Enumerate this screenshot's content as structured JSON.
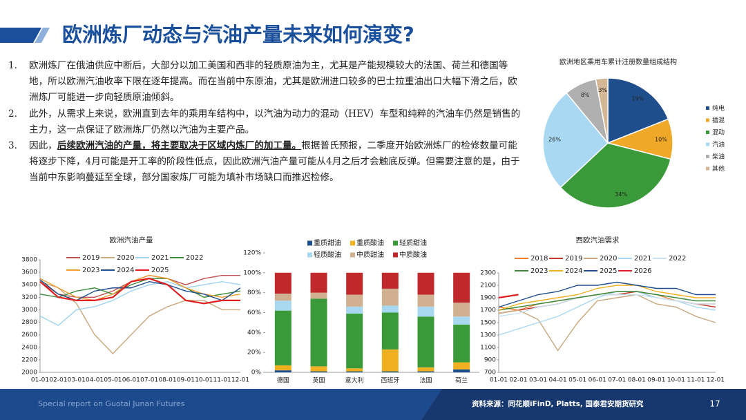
{
  "header": {
    "title": "欧洲炼厂动态与汽油产量未来如何演变?"
  },
  "bullets": [
    {
      "number": "1.",
      "segments": [
        {
          "text": "欧洲炼厂在俄油供应中断后，大部分以加工美国和西非的轻质原油为主，尤其是产能规模较大的法国、荷兰和德国等地，所以欧洲汽油收率下限在逐年提高。而在当前中东原油，尤其是欧洲进口较多的巴士拉重油出口大幅下滑之后，欧洲炼厂可能进一步向轻质原油倾斜。"
        }
      ]
    },
    {
      "number": "2.",
      "segments": [
        {
          "text": "此外，从需求上来说，欧洲直到去年的乘用车结构中，以汽油为动力的混动（HEV）车型和纯粹的汽油车仍然是销售的主力，这一点保证了欧洲炼厂仍然以汽油为主要产品。"
        }
      ]
    },
    {
      "number": "3.",
      "segments": [
        {
          "text": "因此，"
        },
        {
          "text": "后续欧洲汽油的产量，将主要取决于区域内炼厂的加工量。",
          "bold": true
        },
        {
          "text": "根据普氏预报，二季度开始欧洲炼厂的检修数量可能将逐步下降，4月可能是开工率的阶段性低点，因此欧洲汽油产量可能从4月之后才会触底反弹。但需要注意的是，由于当前中东影响蔓延至全球，部分国家炼厂可能为填补市场缺口而推迟检修。"
        }
      ]
    }
  ],
  "chart_data": [
    {
      "type": "pie",
      "title": "欧洲地区乘用车累计注册数量组成结构",
      "categories": [
        "纯电",
        "插混",
        "混动",
        "汽油",
        "柴油",
        "其他"
      ],
      "values": [
        19,
        10,
        34,
        26,
        8,
        3
      ],
      "value_labels": [
        "19%",
        "10%",
        "34%",
        "26%",
        "8%",
        "3%"
      ],
      "colors": [
        "#1f4e8c",
        "#f0a828",
        "#3a9a3a",
        "#a8d8f2",
        "#b0b0b0",
        "#d4b896"
      ]
    },
    {
      "type": "line",
      "title": "欧洲汽油产量",
      "categories": [
        "01-01",
        "02-01",
        "03-01",
        "04-01",
        "05-01",
        "06-01",
        "07-01",
        "08-01",
        "09-01",
        "10-01",
        "11-01",
        "12-01"
      ],
      "ylim": [
        2000,
        3800
      ],
      "yticks": [
        2000,
        2200,
        2400,
        2600,
        2800,
        3000,
        3200,
        3400,
        3600,
        3800
      ],
      "series": [
        {
          "name": "2019",
          "color": "#c0504d",
          "values": [
            3450,
            3250,
            3200,
            3200,
            3300,
            3450,
            3550,
            3500,
            3400,
            3500,
            3550,
            3550
          ]
        },
        {
          "name": "2020",
          "color": "#c9a77c",
          "values": [
            3450,
            3350,
            3100,
            2600,
            2300,
            2600,
            2900,
            3050,
            3150,
            3150,
            3000,
            3000
          ]
        },
        {
          "name": "2021",
          "color": "#9dd3f0",
          "values": [
            2900,
            2750,
            3000,
            3050,
            3150,
            3300,
            3400,
            3450,
            3350,
            3400,
            3450,
            3400
          ]
        },
        {
          "name": "2022",
          "color": "#3c8a3c",
          "values": [
            3250,
            3200,
            3300,
            3350,
            3250,
            3400,
            3500,
            3500,
            3350,
            3200,
            3250,
            3300
          ]
        },
        {
          "name": "2023",
          "color": "#f0a030",
          "values": [
            3500,
            3350,
            3200,
            3150,
            3250,
            3450,
            3550,
            3500,
            3350,
            3250,
            3200,
            3250
          ]
        },
        {
          "name": "2024",
          "color": "#1f4e8c",
          "values": [
            3480,
            3250,
            3150,
            3300,
            3350,
            3350,
            3450,
            3400,
            3300,
            3250,
            3150,
            3350
          ]
        },
        {
          "name": "2025",
          "color": "#e02020",
          "values": [
            3450,
            3200,
            3150,
            3150,
            3200,
            3450,
            3500,
            3400,
            3150,
            3100,
            3150,
            3150
          ]
        }
      ]
    },
    {
      "type": "stacked_bar",
      "categories": [
        "德国",
        "英国",
        "意大利",
        "西班牙",
        "法国",
        "荷兰"
      ],
      "ylim": [
        0,
        120
      ],
      "yticks": [
        {
          "value": 0,
          "label": "0%"
        },
        {
          "value": 20,
          "label": "20%"
        },
        {
          "value": 40,
          "label": "40%"
        },
        {
          "value": 60,
          "label": "60%"
        },
        {
          "value": 80,
          "label": "80%"
        },
        {
          "value": 100,
          "label": "100%"
        },
        {
          "value": 120,
          "label": "120%"
        }
      ],
      "series": [
        {
          "name": "重质甜油",
          "color": "#1f4e8c",
          "values": [
            2,
            1,
            1,
            1,
            1,
            3
          ]
        },
        {
          "name": "重质酸油",
          "color": "#f0b020",
          "values": [
            5,
            5,
            3,
            22,
            4,
            7
          ]
        },
        {
          "name": "轻质甜油",
          "color": "#3a9a3a",
          "values": [
            55,
            68,
            55,
            37,
            51,
            38
          ]
        },
        {
          "name": "轻质酸油",
          "color": "#a8d8f0",
          "values": [
            10,
            0,
            7,
            7,
            10,
            8
          ]
        },
        {
          "name": "中质甜油",
          "color": "#d0b090",
          "values": [
            7,
            6,
            12,
            17,
            12,
            14
          ]
        },
        {
          "name": "中质酸油",
          "color": "#c0282c",
          "values": [
            21,
            20,
            22,
            16,
            22,
            30
          ]
        }
      ]
    },
    {
      "type": "line",
      "title": "西欧汽油需求",
      "categories": [
        "01-01",
        "02-01",
        "03-01",
        "04-01",
        "05-01",
        "06-01",
        "07-01",
        "08-01",
        "09-01",
        "10-01",
        "11-01",
        "12-01"
      ],
      "ylim": [
        700,
        2300
      ],
      "yticks": [
        700,
        900,
        1100,
        1300,
        1500,
        1700,
        1900,
        2100,
        2300
      ],
      "series": [
        {
          "name": "2018",
          "color": "#f08030",
          "values": [
            1750,
            1700,
            1800,
            1850,
            1900,
            1950,
            2000,
            2000,
            1950,
            1850,
            1800,
            1800
          ]
        },
        {
          "name": "2019",
          "color": "#c0392b",
          "values": [
            1650,
            1700,
            1750,
            1800,
            1900,
            1950,
            1950,
            2000,
            1900,
            1850,
            1800,
            1750
          ]
        },
        {
          "name": "2020",
          "color": "#c9a77c",
          "values": [
            1650,
            1700,
            1550,
            1050,
            1500,
            1850,
            1900,
            1950,
            1800,
            1750,
            1600,
            1500
          ]
        },
        {
          "name": "2021",
          "color": "#a8d8f0",
          "values": [
            1300,
            1400,
            1500,
            1600,
            1750,
            1900,
            2000,
            2000,
            1900,
            1850,
            1750,
            1700
          ]
        },
        {
          "name": "2022",
          "color": "#c8e4f4",
          "values": [
            1600,
            1650,
            1750,
            1800,
            1900,
            1950,
            1950,
            1950,
            1900,
            1850,
            1800,
            1800
          ]
        },
        {
          "name": "2023",
          "color": "#3c8a3c",
          "values": [
            1700,
            1750,
            1800,
            1850,
            1900,
            1950,
            2000,
            2000,
            1950,
            1900,
            1850,
            1850
          ]
        },
        {
          "name": "2024",
          "color": "#f0b020",
          "values": [
            1700,
            1800,
            1850,
            1900,
            1950,
            2050,
            2100,
            2100,
            2000,
            1950,
            1900,
            1900
          ]
        },
        {
          "name": "2025",
          "color": "#1f4e8c",
          "values": [
            1750,
            1850,
            1950,
            2000,
            2100,
            2100,
            2150,
            2100,
            2050,
            2050,
            1950,
            1950
          ]
        },
        {
          "name": "2026",
          "color": "#e02020",
          "values": [
            1900,
            1950,
            null,
            null,
            null,
            null,
            null,
            null,
            null,
            null,
            null,
            null
          ]
        }
      ]
    }
  ],
  "footer": {
    "left": "Special report on Guotai Junan Futures",
    "source": "资料来源：同花顺iFinD, Platts, 国泰君安期货研究",
    "page": "17"
  }
}
